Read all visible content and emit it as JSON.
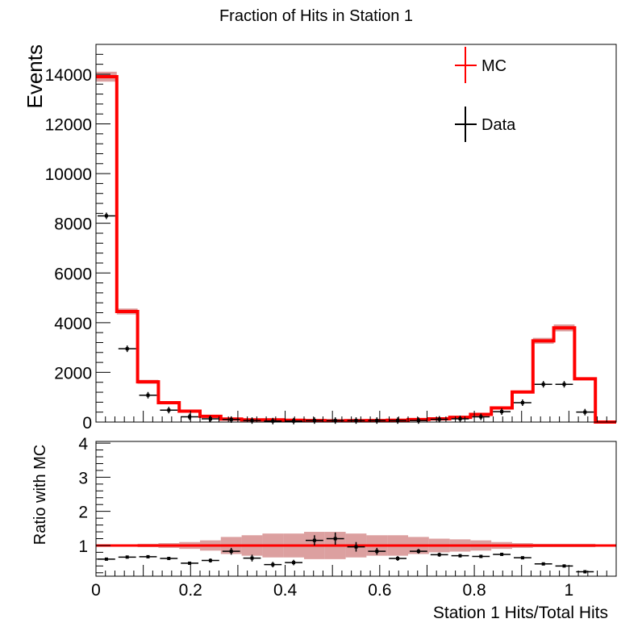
{
  "chart_data": [
    {
      "type": "histogram",
      "title": "Fraction of Hits in Station 1",
      "ylabel": "Events",
      "xlim": [
        0,
        1.1
      ],
      "ylim": [
        0,
        15200
      ],
      "yticks": [
        0,
        2000,
        4000,
        6000,
        8000,
        10000,
        12000,
        14000
      ],
      "ytick_labels": [
        "0",
        "2000",
        "4000",
        "6000",
        "8000",
        "10000",
        "12000",
        "14000"
      ],
      "grid": false,
      "legend": {
        "placement": "top-right",
        "entries": [
          "MC",
          "Data"
        ]
      },
      "colors": {
        "mc": "#ff0000",
        "mc_band": "#d08080",
        "data": "#000000"
      },
      "bin_edges": [
        0,
        0.044,
        0.088,
        0.132,
        0.176,
        0.22,
        0.264,
        0.308,
        0.352,
        0.396,
        0.44,
        0.484,
        0.528,
        0.572,
        0.616,
        0.66,
        0.704,
        0.748,
        0.792,
        0.836,
        0.88,
        0.924,
        0.968,
        1.012,
        1.056,
        1.1
      ],
      "series": [
        {
          "name": "MC",
          "values": [
            13900,
            4450,
            1620,
            780,
            440,
            230,
            120,
            90,
            90,
            75,
            60,
            50,
            55,
            60,
            75,
            100,
            130,
            190,
            310,
            570,
            1210,
            3270,
            3790,
            1740,
            0
          ],
          "band": [
            200,
            120,
            80,
            50,
            40,
            30,
            25,
            20,
            20,
            20,
            20,
            20,
            20,
            20,
            20,
            20,
            20,
            20,
            30,
            40,
            60,
            120,
            140,
            60,
            0
          ]
        },
        {
          "name": "Data",
          "values": [
            8300,
            2950,
            1080,
            480,
            210,
            130,
            100,
            60,
            40,
            40,
            60,
            60,
            60,
            60,
            60,
            60,
            110,
            130,
            210,
            420,
            780,
            1520,
            1520,
            400,
            0
          ]
        }
      ]
    },
    {
      "type": "ratio",
      "ylabel": "Ratio with MC",
      "xlabel": "Station 1 Hits/Total Hits",
      "xlim": [
        0,
        1.1
      ],
      "ylim": [
        0.1,
        4.05
      ],
      "xticks": [
        0,
        0.2,
        0.4,
        0.6,
        0.8,
        1
      ],
      "xtick_labels": [
        "0",
        "0.2",
        "0.4",
        "0.6",
        "0.8",
        "1"
      ],
      "yticks": [
        1,
        2,
        3,
        4
      ],
      "ytick_labels": [
        "1",
        "2",
        "3",
        "4"
      ],
      "reference_line": 1,
      "values": [
        0.6,
        0.66,
        0.67,
        0.62,
        0.48,
        0.56,
        0.83,
        0.63,
        0.44,
        0.5,
        1.15,
        1.2,
        0.96,
        0.83,
        0.62,
        0.83,
        0.73,
        0.7,
        0.68,
        0.74,
        0.64,
        0.46,
        0.4,
        0.23
      ],
      "errors": [
        0.02,
        0.02,
        0.02,
        0.03,
        0.04,
        0.06,
        0.1,
        0.1,
        0.08,
        0.08,
        0.15,
        0.18,
        0.14,
        0.1,
        0.07,
        0.07,
        0.06,
        0.05,
        0.04,
        0.03,
        0.03,
        0.02,
        0.02,
        0.03
      ],
      "band": [
        0.03,
        0.03,
        0.05,
        0.07,
        0.1,
        0.15,
        0.25,
        0.3,
        0.35,
        0.35,
        0.4,
        0.4,
        0.35,
        0.3,
        0.3,
        0.25,
        0.2,
        0.18,
        0.15,
        0.1,
        0.07,
        0.05,
        0.05,
        0.05
      ]
    }
  ]
}
